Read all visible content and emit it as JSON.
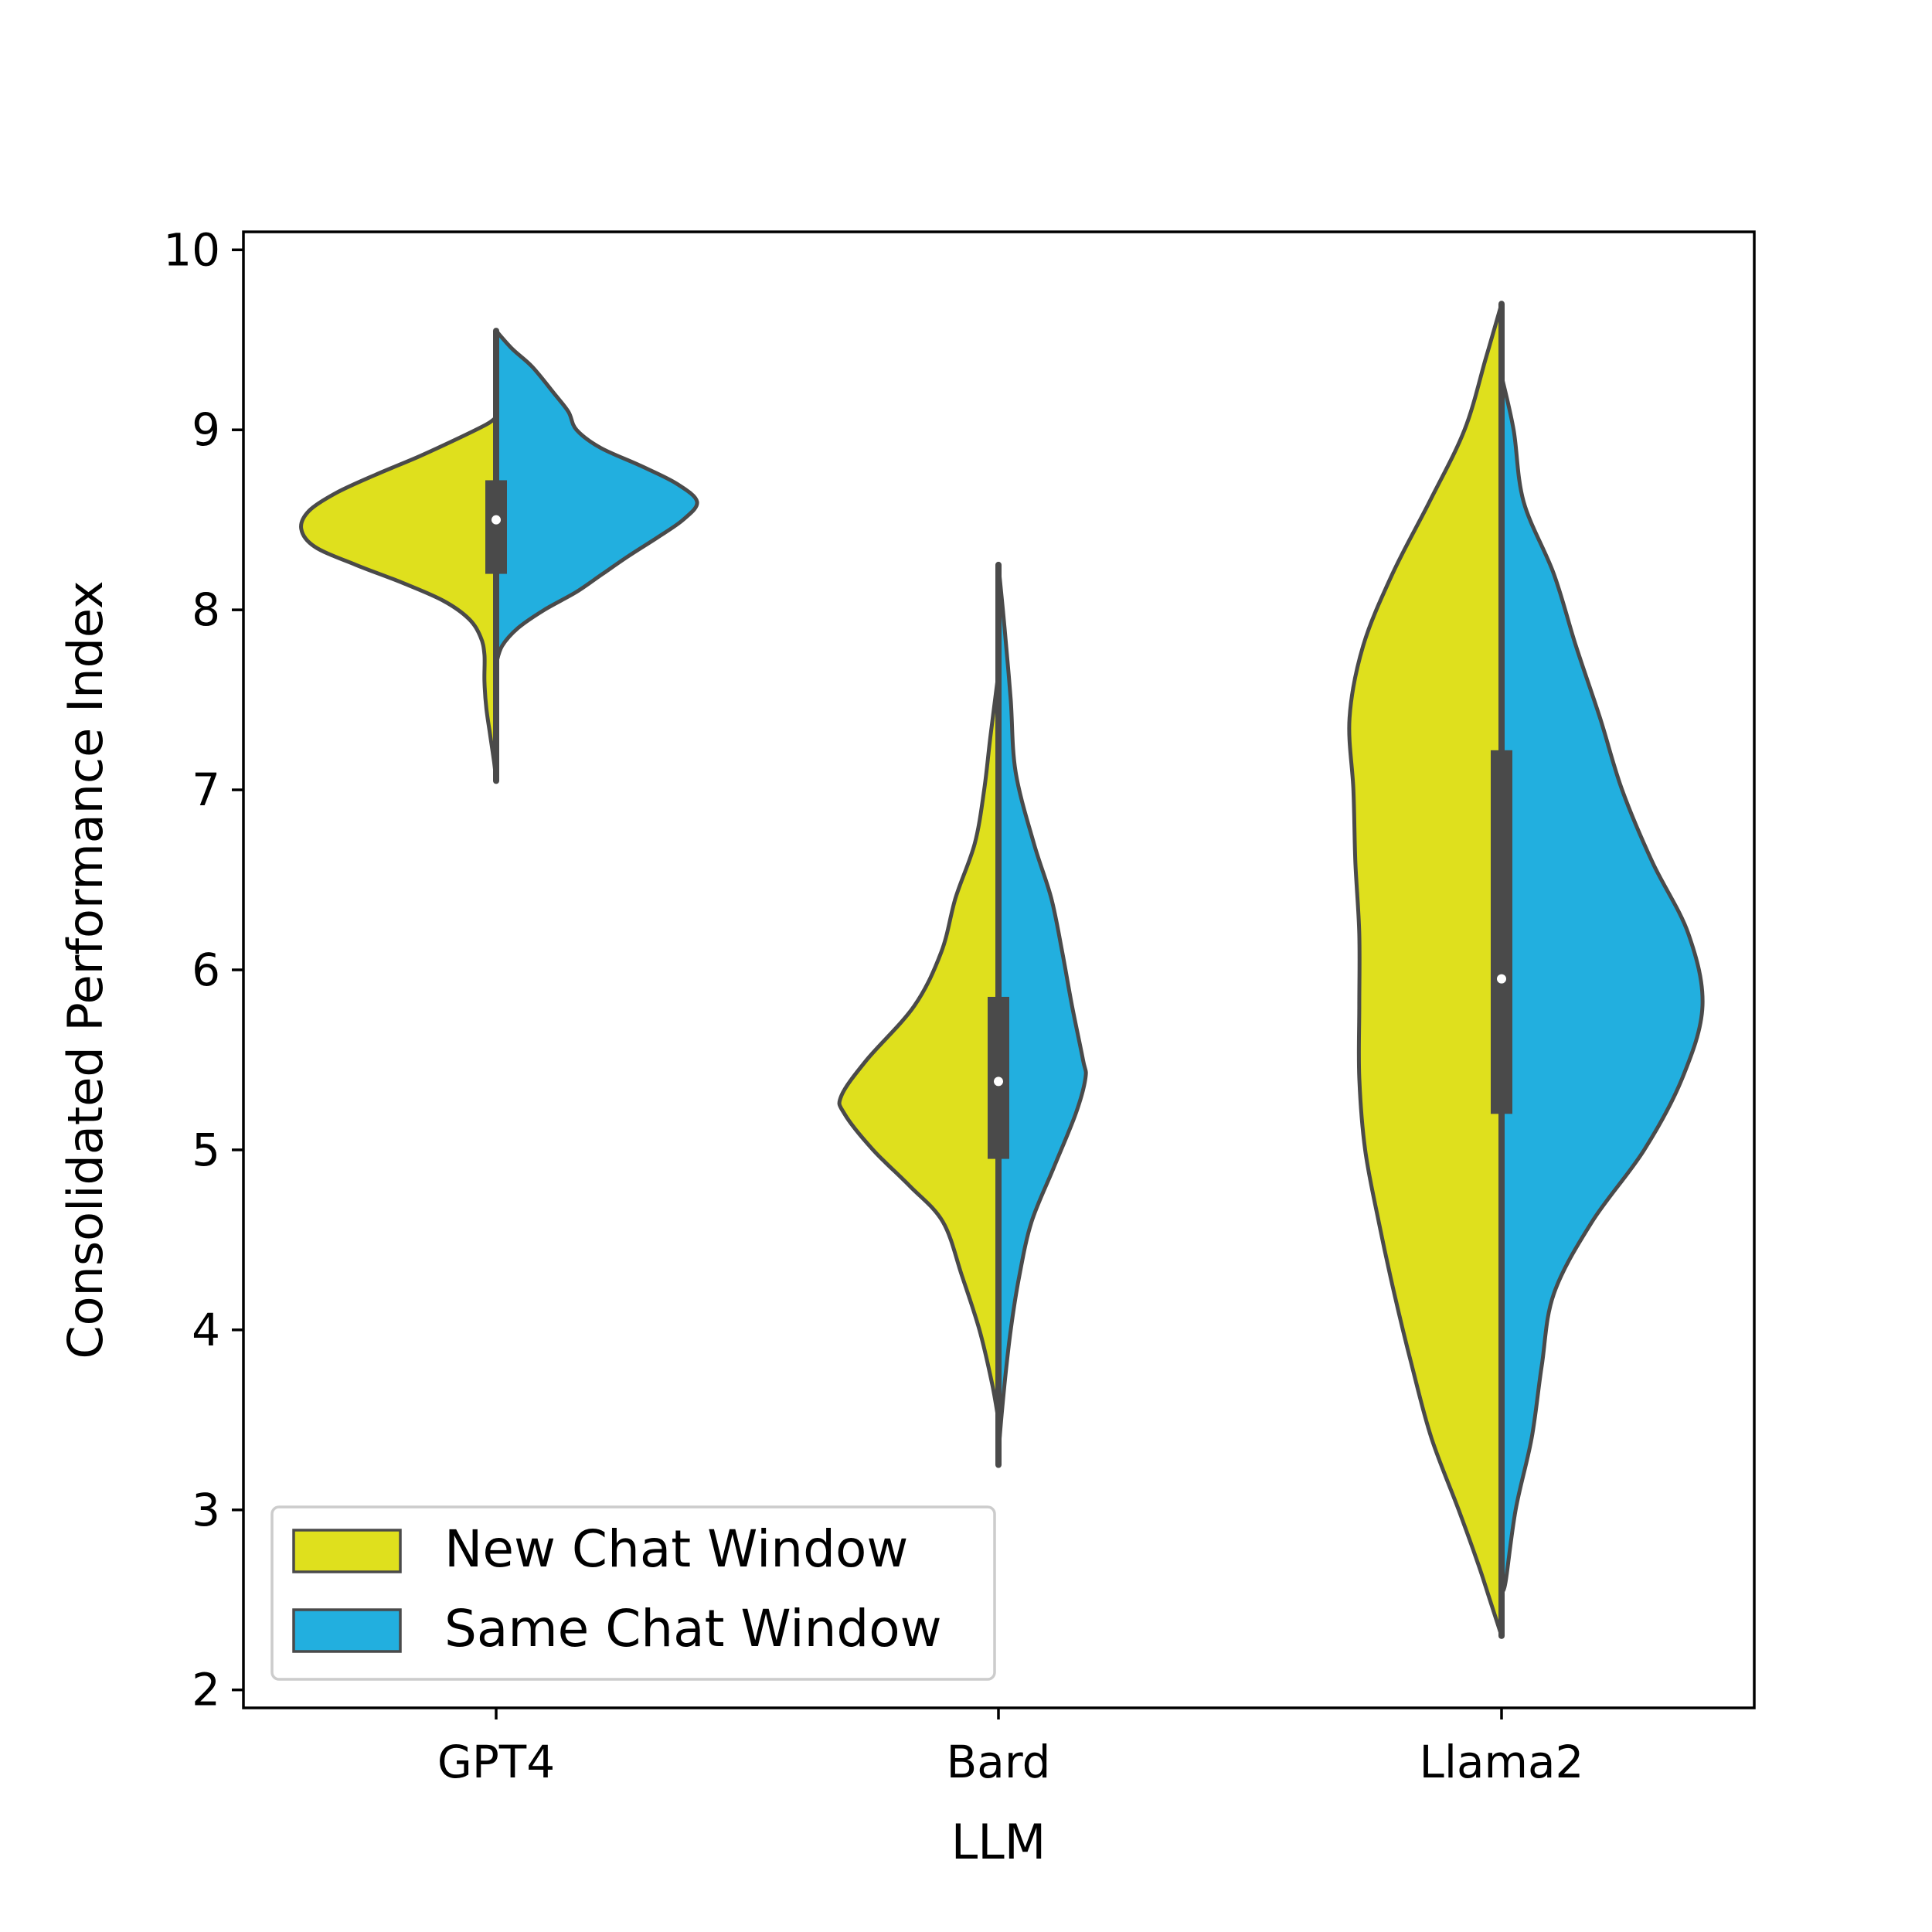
{
  "chart_data": {
    "type": "violin",
    "split": true,
    "title": "",
    "xlabel": "LLM",
    "ylabel": "Consolidated Performance Index",
    "ylim": [
      1.9,
      10.1
    ],
    "yticks": [
      2,
      3,
      4,
      5,
      6,
      7,
      8,
      9,
      10
    ],
    "categories": [
      "GPT4",
      "Bard",
      "Llama2"
    ],
    "legend": {
      "placement": "lower-left",
      "entries": [
        {
          "label": "New Chat Window",
          "color": "#dfe01d"
        },
        {
          "label": "Same Chat Window",
          "color": "#22afdf"
        }
      ]
    },
    "colors": {
      "left": "#dfe01d",
      "right": "#22afdf",
      "outline": "#4a4a4a"
    },
    "violins": [
      {
        "category": "GPT4",
        "left": [
          [
            9.07,
            0
          ],
          [
            9.03,
            0.05
          ],
          [
            8.95,
            0.2
          ],
          [
            8.85,
            0.4
          ],
          [
            8.75,
            0.62
          ],
          [
            8.65,
            0.82
          ],
          [
            8.55,
            0.96
          ],
          [
            8.45,
            1.0
          ],
          [
            8.35,
            0.93
          ],
          [
            8.25,
            0.72
          ],
          [
            8.15,
            0.48
          ],
          [
            8.05,
            0.27
          ],
          [
            7.95,
            0.14
          ],
          [
            7.85,
            0.08
          ],
          [
            7.75,
            0.06
          ],
          [
            7.6,
            0.06
          ],
          [
            7.45,
            0.05
          ],
          [
            7.3,
            0.03
          ],
          [
            7.15,
            0.01
          ],
          [
            7.05,
            0
          ]
        ],
        "right": [
          [
            9.55,
            0
          ],
          [
            9.45,
            0.08
          ],
          [
            9.35,
            0.18
          ],
          [
            9.2,
            0.29
          ],
          [
            9.1,
            0.36
          ],
          [
            9.0,
            0.4
          ],
          [
            8.9,
            0.52
          ],
          [
            8.8,
            0.72
          ],
          [
            8.7,
            0.9
          ],
          [
            8.6,
            1.0
          ],
          [
            8.5,
            0.93
          ],
          [
            8.4,
            0.8
          ],
          [
            8.3,
            0.66
          ],
          [
            8.2,
            0.53
          ],
          [
            8.1,
            0.4
          ],
          [
            8.0,
            0.24
          ],
          [
            7.9,
            0.11
          ],
          [
            7.8,
            0.03
          ],
          [
            7.7,
            0
          ]
        ],
        "left_width": 0.97,
        "right_width": 1.0,
        "q1": 8.2,
        "median": 8.5,
        "q3": 8.72,
        "whisker_low": 7.05,
        "whisker_high": 9.55
      },
      {
        "category": "Bard",
        "left": [
          [
            7.65,
            0
          ],
          [
            7.3,
            0.05
          ],
          [
            7.0,
            0.09
          ],
          [
            6.7,
            0.15
          ],
          [
            6.4,
            0.27
          ],
          [
            6.1,
            0.36
          ],
          [
            5.8,
            0.53
          ],
          [
            5.5,
            0.83
          ],
          [
            5.3,
            0.99
          ],
          [
            5.2,
            0.97
          ],
          [
            5.0,
            0.79
          ],
          [
            4.8,
            0.56
          ],
          [
            4.6,
            0.35
          ],
          [
            4.3,
            0.23
          ],
          [
            4.0,
            0.12
          ],
          [
            3.7,
            0.04
          ],
          [
            3.5,
            0
          ]
        ],
        "right": [
          [
            8.25,
            0
          ],
          [
            7.9,
            0.05
          ],
          [
            7.5,
            0.1
          ],
          [
            7.1,
            0.14
          ],
          [
            6.7,
            0.29
          ],
          [
            6.4,
            0.43
          ],
          [
            6.1,
            0.52
          ],
          [
            5.8,
            0.6
          ],
          [
            5.5,
            0.69
          ],
          [
            5.4,
            0.71
          ],
          [
            5.2,
            0.63
          ],
          [
            4.9,
            0.45
          ],
          [
            4.6,
            0.27
          ],
          [
            4.3,
            0.17
          ],
          [
            4.0,
            0.1
          ],
          [
            3.7,
            0.05
          ],
          [
            3.4,
            0.01
          ],
          [
            3.25,
            0
          ]
        ],
        "left_width": 0.79,
        "right_width": 0.61,
        "q1": 4.95,
        "median": 5.38,
        "q3": 5.85,
        "whisker_low": 3.25,
        "whisker_high": 8.25
      },
      {
        "category": "Llama2",
        "left": [
          [
            9.7,
            0
          ],
          [
            9.4,
            0.08
          ],
          [
            9.0,
            0.19
          ],
          [
            8.6,
            0.37
          ],
          [
            8.2,
            0.56
          ],
          [
            7.8,
            0.71
          ],
          [
            7.4,
            0.78
          ],
          [
            7.0,
            0.76
          ],
          [
            6.6,
            0.75
          ],
          [
            6.2,
            0.73
          ],
          [
            5.8,
            0.73
          ],
          [
            5.4,
            0.73
          ],
          [
            5.0,
            0.7
          ],
          [
            4.6,
            0.63
          ],
          [
            4.2,
            0.55
          ],
          [
            3.8,
            0.46
          ],
          [
            3.4,
            0.36
          ],
          [
            3.0,
            0.22
          ],
          [
            2.7,
            0.12
          ],
          [
            2.5,
            0.06
          ],
          [
            2.3,
            0
          ]
        ],
        "right": [
          [
            9.3,
            0
          ],
          [
            9.0,
            0.06
          ],
          [
            8.6,
            0.11
          ],
          [
            8.2,
            0.26
          ],
          [
            7.8,
            0.37
          ],
          [
            7.4,
            0.49
          ],
          [
            7.0,
            0.6
          ],
          [
            6.6,
            0.75
          ],
          [
            6.2,
            0.93
          ],
          [
            5.8,
            1.0
          ],
          [
            5.4,
            0.9
          ],
          [
            5.0,
            0.71
          ],
          [
            4.6,
            0.45
          ],
          [
            4.2,
            0.26
          ],
          [
            3.8,
            0.2
          ],
          [
            3.4,
            0.15
          ],
          [
            3.0,
            0.07
          ],
          [
            2.6,
            0.02
          ],
          [
            2.55,
            0
          ]
        ],
        "left_width": 0.97,
        "right_width": 1.0,
        "q1": 5.2,
        "median": 5.95,
        "q3": 7.22,
        "whisker_low": 2.3,
        "whisker_high": 9.7
      }
    ]
  }
}
